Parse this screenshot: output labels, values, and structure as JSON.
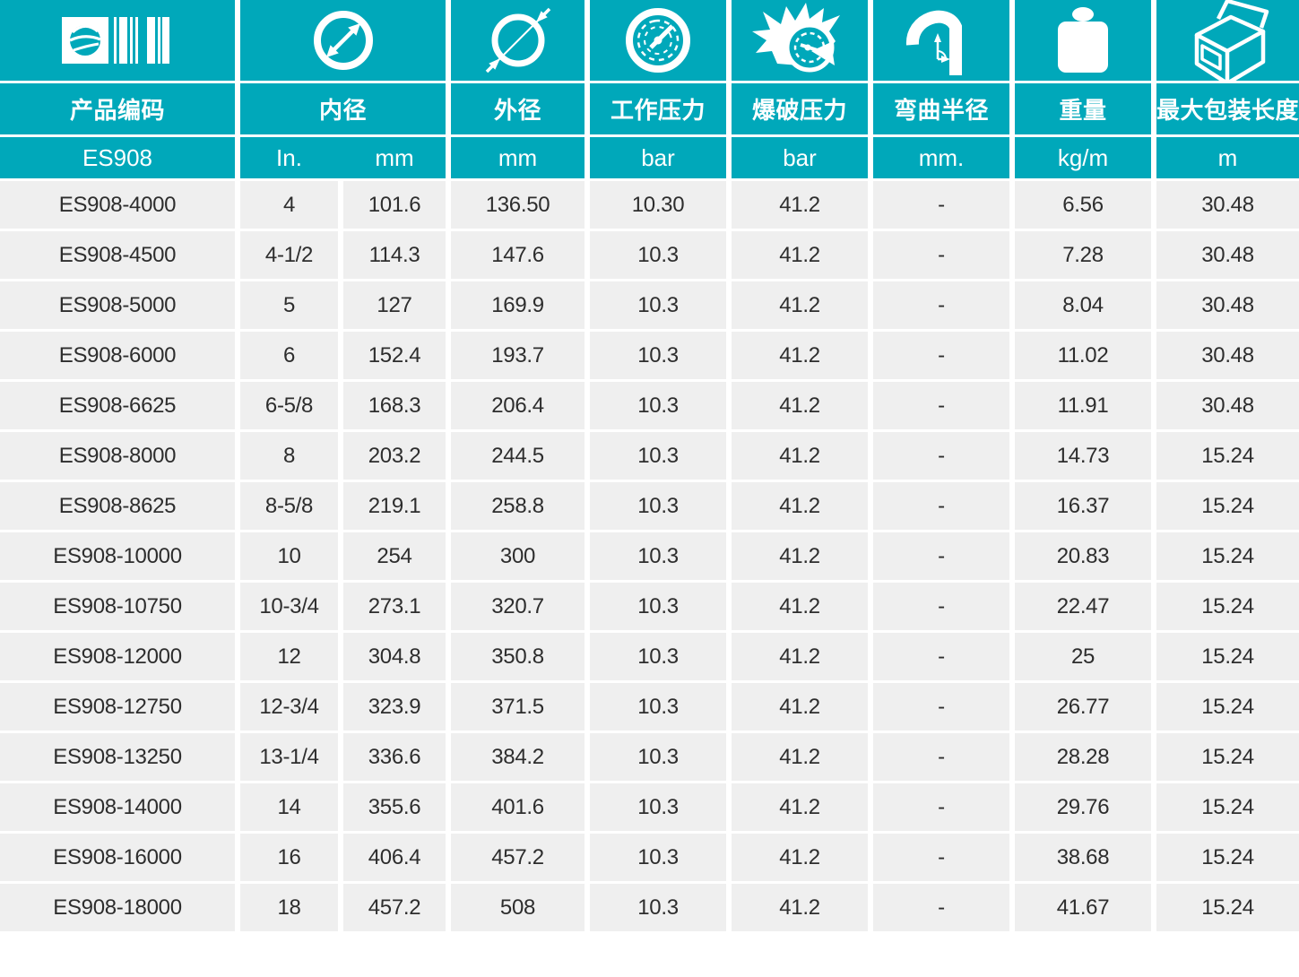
{
  "colors": {
    "teal": "#00a8ba",
    "row_bg": "#efefef",
    "data_text": "#2d2d2d"
  },
  "table": {
    "columns": [
      {
        "label": "产品编码",
        "icon": "barcode-icon",
        "unit": "ES908"
      },
      {
        "label": "内径",
        "icon": "inner-diameter-icon",
        "unit_in": "In.",
        "unit_mm": "mm"
      },
      {
        "label": "外径",
        "icon": "outer-diameter-icon",
        "unit": "mm"
      },
      {
        "label": "工作压力",
        "icon": "working-pressure-icon",
        "unit": "bar"
      },
      {
        "label": "爆破压力",
        "icon": "burst-pressure-icon",
        "unit": "bar"
      },
      {
        "label": "弯曲半径",
        "icon": "bend-radius-icon",
        "unit": "mm."
      },
      {
        "label": "重量",
        "icon": "weight-icon",
        "unit": "kg/m"
      },
      {
        "label": "最大包装长度",
        "icon": "package-icon",
        "unit": "m"
      }
    ],
    "rows": [
      [
        "ES908-4000",
        "4",
        "101.6",
        "136.50",
        "10.30",
        "41.2",
        "-",
        "6.56",
        "30.48"
      ],
      [
        "ES908-4500",
        "4-1/2",
        "114.3",
        "147.6",
        "10.3",
        "41.2",
        "-",
        "7.28",
        "30.48"
      ],
      [
        "ES908-5000",
        "5",
        "127",
        "169.9",
        "10.3",
        "41.2",
        "-",
        "8.04",
        "30.48"
      ],
      [
        "ES908-6000",
        "6",
        "152.4",
        "193.7",
        "10.3",
        "41.2",
        "-",
        "11.02",
        "30.48"
      ],
      [
        "ES908-6625",
        "6-5/8",
        "168.3",
        "206.4",
        "10.3",
        "41.2",
        "-",
        "11.91",
        "30.48"
      ],
      [
        "ES908-8000",
        "8",
        "203.2",
        "244.5",
        "10.3",
        "41.2",
        "-",
        "14.73",
        "15.24"
      ],
      [
        "ES908-8625",
        "8-5/8",
        "219.1",
        "258.8",
        "10.3",
        "41.2",
        "-",
        "16.37",
        "15.24"
      ],
      [
        "ES908-10000",
        "10",
        "254",
        "300",
        "10.3",
        "41.2",
        "-",
        "20.83",
        "15.24"
      ],
      [
        "ES908-10750",
        "10-3/4",
        "273.1",
        "320.7",
        "10.3",
        "41.2",
        "-",
        "22.47",
        "15.24"
      ],
      [
        "ES908-12000",
        "12",
        "304.8",
        "350.8",
        "10.3",
        "41.2",
        "-",
        "25",
        "15.24"
      ],
      [
        "ES908-12750",
        "12-3/4",
        "323.9",
        "371.5",
        "10.3",
        "41.2",
        "-",
        "26.77",
        "15.24"
      ],
      [
        "ES908-13250",
        "13-1/4",
        "336.6",
        "384.2",
        "10.3",
        "41.2",
        "-",
        "28.28",
        "15.24"
      ],
      [
        "ES908-14000",
        "14",
        "355.6",
        "401.6",
        "10.3",
        "41.2",
        "-",
        "29.76",
        "15.24"
      ],
      [
        "ES908-16000",
        "16",
        "406.4",
        "457.2",
        "10.3",
        "41.2",
        "-",
        "38.68",
        "15.24"
      ],
      [
        "ES908-18000",
        "18",
        "457.2",
        "508",
        "10.3",
        "41.2",
        "-",
        "41.67",
        "15.24"
      ]
    ]
  }
}
